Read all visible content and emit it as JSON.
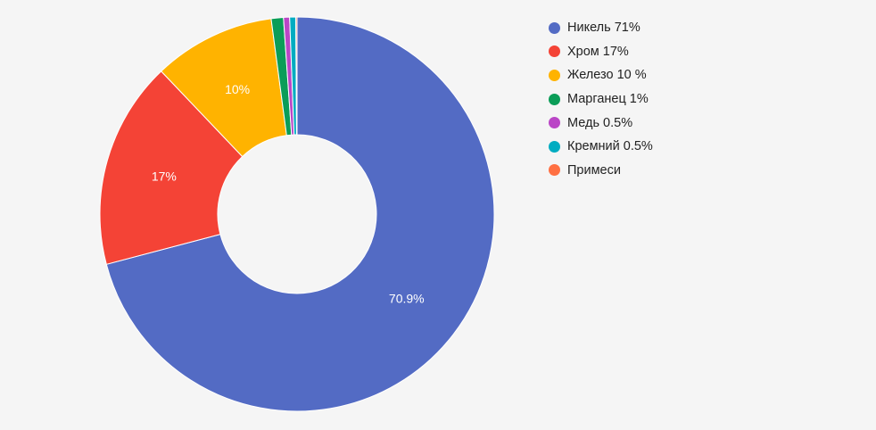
{
  "chart_data": {
    "type": "pie",
    "variant": "donut",
    "slices": [
      {
        "label": "Никель 71%",
        "value": 70.9,
        "color": "#536bc4",
        "data_label": "70.9%"
      },
      {
        "label": "Хром 17%",
        "value": 17,
        "color": "#f44336",
        "data_label": "17%"
      },
      {
        "label": "Железо 10 %",
        "value": 10,
        "color": "#ffb300",
        "data_label": "10%"
      },
      {
        "label": "Марганец 1%",
        "value": 1,
        "color": "#0b9d58",
        "data_label": ""
      },
      {
        "label": "Медь 0.5%",
        "value": 0.5,
        "color": "#ba46c6",
        "data_label": ""
      },
      {
        "label": "Кремний 0.5%",
        "value": 0.5,
        "color": "#00acc1",
        "data_label": ""
      },
      {
        "label": "Примеси",
        "value": 0.1,
        "color": "#ff7043",
        "data_label": ""
      }
    ],
    "legend_position": "right",
    "start_angle": "top, clockwise"
  }
}
